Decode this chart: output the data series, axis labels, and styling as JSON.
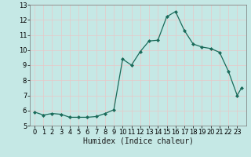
{
  "title": "",
  "xlabel": "Humidex (Indice chaleur)",
  "x": [
    0,
    1,
    2,
    3,
    4,
    5,
    6,
    7,
    8,
    9,
    10,
    11,
    12,
    13,
    14,
    15,
    16,
    17,
    18,
    19,
    20,
    21,
    22,
    23,
    23.5
  ],
  "y": [
    5.9,
    5.7,
    5.8,
    5.75,
    5.55,
    5.55,
    5.55,
    5.6,
    5.8,
    6.05,
    9.4,
    9.0,
    9.9,
    10.6,
    10.65,
    12.2,
    12.55,
    11.3,
    10.4,
    10.2,
    10.1,
    9.85,
    8.6,
    7.0,
    7.5
  ],
  "xlim": [
    -0.5,
    24.0
  ],
  "ylim": [
    5,
    13
  ],
  "yticks": [
    5,
    6,
    7,
    8,
    9,
    10,
    11,
    12,
    13
  ],
  "xticks": [
    0,
    1,
    2,
    3,
    4,
    5,
    6,
    7,
    8,
    9,
    10,
    11,
    12,
    13,
    14,
    15,
    16,
    17,
    18,
    19,
    20,
    21,
    22,
    23
  ],
  "bg_color": "#c5e8e5",
  "grid_color": "#e8c8c8",
  "line_color": "#1a6b5a",
  "marker": "D",
  "marker_size": 2.0,
  "line_width": 0.9,
  "label_fontsize": 7,
  "tick_fontsize": 6
}
